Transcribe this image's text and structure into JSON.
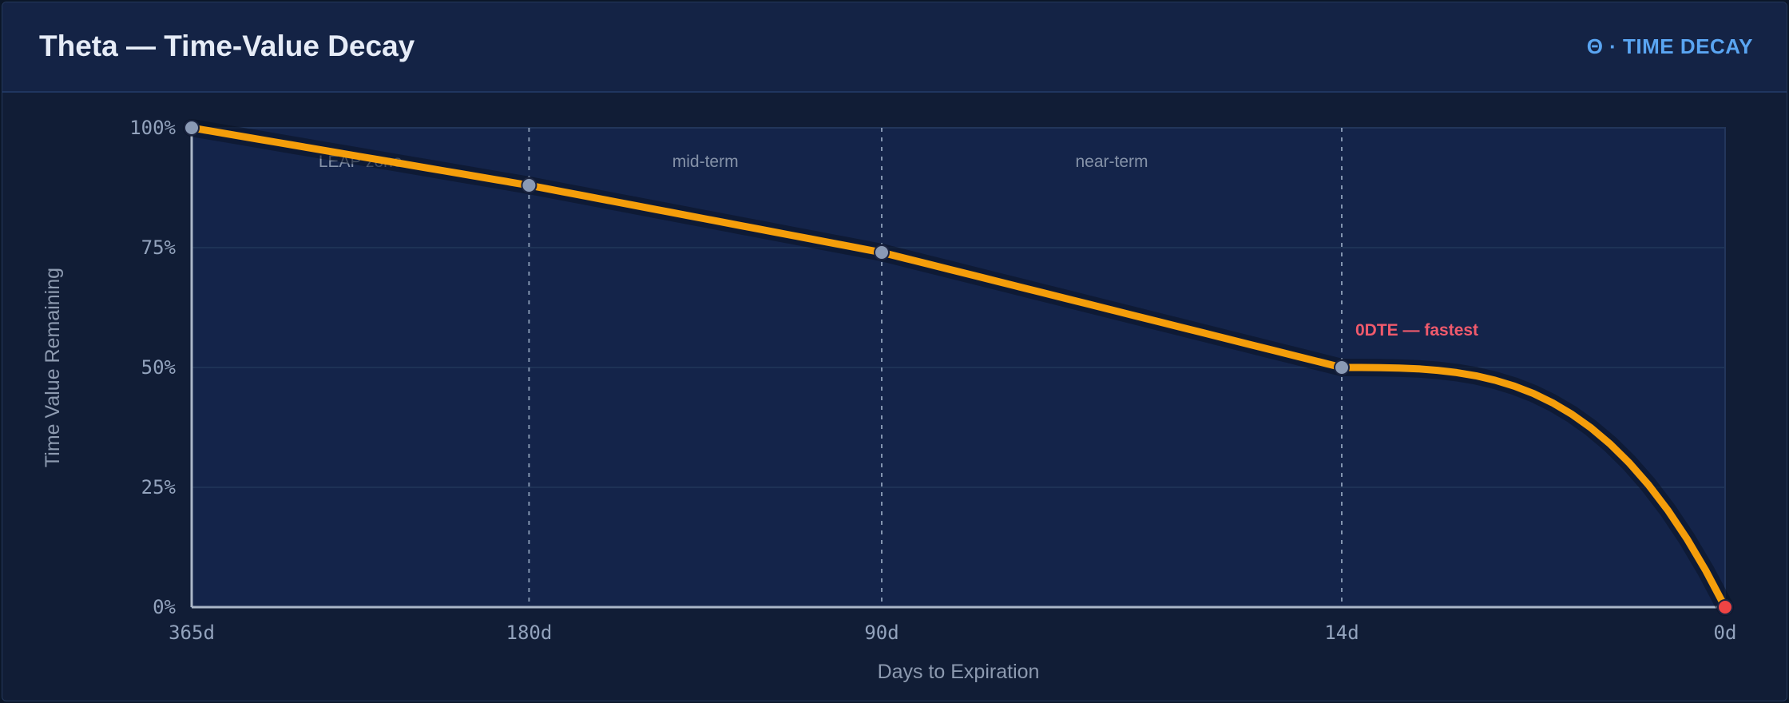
{
  "header": {
    "title": "Theta — Time-Value Decay",
    "badge": "Θ · TIME DECAY"
  },
  "chart_data": {
    "type": "line",
    "title": "Theta — Time-Value Decay",
    "xlabel": "Days to Expiration",
    "ylabel": "Time Value Remaining",
    "x_ticks": [
      "365d",
      "180d",
      "90d",
      "14d",
      "0d"
    ],
    "y_ticks": [
      "0%",
      "25%",
      "50%",
      "75%",
      "100%"
    ],
    "ylim": [
      0,
      100
    ],
    "grid": true,
    "series": [
      {
        "x": [
          "365d",
          "180d",
          "90d",
          "14d",
          "0d"
        ],
        "values": [
          100,
          88,
          74,
          50,
          0
        ]
      }
    ],
    "regions": [
      {
        "label": "LEAP zone",
        "from": "365d",
        "to": "180d"
      },
      {
        "label": "mid-term",
        "from": "180d",
        "to": "90d"
      },
      {
        "label": "near-term",
        "from": "90d",
        "to": "14d"
      }
    ],
    "annotation": {
      "text": "0DTE — fastest",
      "at": "14d"
    },
    "colors": {
      "line": "#f59e0b",
      "marker": "#8a9ab5",
      "end_marker": "#ef4444",
      "annotation": "#f05a6c",
      "plot_bg": "#14244a"
    }
  }
}
